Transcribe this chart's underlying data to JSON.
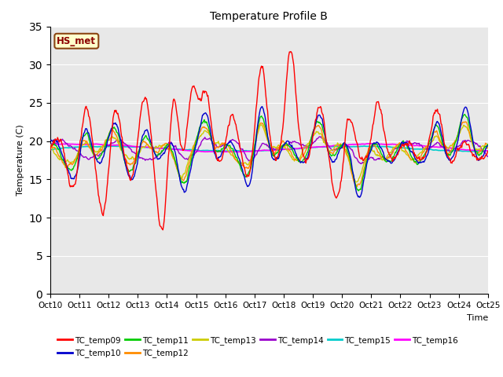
{
  "title": "Temperature Profile B",
  "xlabel": "Time",
  "ylabel": "Temperature (C)",
  "annotation": "HS_met",
  "ylim": [
    0,
    35
  ],
  "yticks": [
    0,
    5,
    10,
    15,
    20,
    25,
    30,
    35
  ],
  "series_colors": {
    "TC_temp09": "#FF0000",
    "TC_temp10": "#0000CD",
    "TC_temp11": "#00CC00",
    "TC_temp12": "#FF8C00",
    "TC_temp13": "#CCCC00",
    "TC_temp14": "#9900CC",
    "TC_temp15": "#00CCCC",
    "TC_temp16": "#FF00FF"
  },
  "x_tick_labels": [
    "Oct 10",
    "Oct 11",
    "Oct 12",
    "Oct 13",
    "Oct 14",
    "Oct 15",
    "Oct 16",
    "Oct 17",
    "Oct 18",
    "Oct 19",
    "Oct 20",
    "Oct 21",
    "Oct 22",
    "Oct 23",
    "Oct 24",
    "Oct 25"
  ],
  "bg_color": "#E8E8E8",
  "face_color": "#FFFFFF",
  "grid_color": "#FFFFFF",
  "title_fontsize": 10,
  "axis_fontsize": 8,
  "tick_fontsize": 7.5,
  "legend_fontsize": 7.5
}
